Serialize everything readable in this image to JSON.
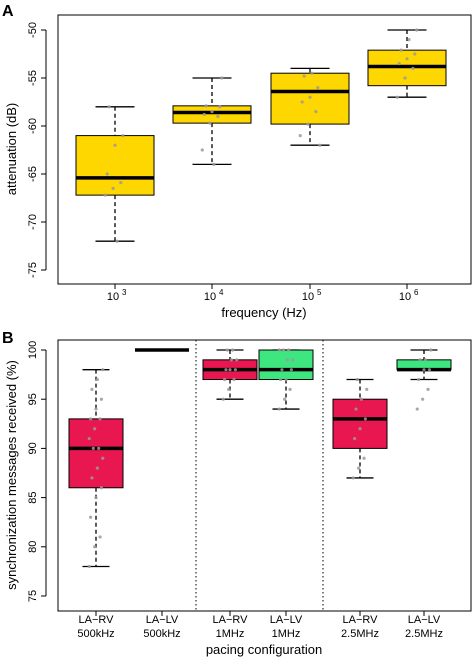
{
  "chart_data": [
    {
      "panel_label": "A",
      "type": "boxplot",
      "xlabel": "frequency (Hz)",
      "ylabel": "attenuation (dB)",
      "ylim": [
        -75,
        -50
      ],
      "y_ticks": [
        -75,
        -70,
        -65,
        -60,
        -55,
        -50
      ],
      "grid": false,
      "categories": [
        {
          "base": "10",
          "exp": "3"
        },
        {
          "base": "10",
          "exp": "4"
        },
        {
          "base": "10",
          "exp": "5"
        },
        {
          "base": "10",
          "exp": "6"
        }
      ],
      "boxes": [
        {
          "color": "#FFD700",
          "min": -72,
          "q1": -67.2,
          "median": -65.4,
          "q3": -61,
          "max": -58,
          "points": [
            -67.2,
            -66.5,
            -65.9,
            -65,
            -62,
            -61,
            -58,
            -72
          ]
        },
        {
          "color": "#FFD700",
          "min": -64,
          "q1": -59.7,
          "median": -58.6,
          "q3": -57.9,
          "max": -55,
          "points": [
            -62.5,
            -59.7,
            -59,
            -58.8,
            -58.5,
            -58,
            -57.9,
            -64,
            -55
          ]
        },
        {
          "color": "#FFD700",
          "min": -62,
          "q1": -59.8,
          "median": -56.4,
          "q3": -54.5,
          "max": -54,
          "points": [
            -61,
            -59.8,
            -58.5,
            -57.5,
            -57,
            -56,
            -54.8,
            -54.5,
            -62
          ]
        },
        {
          "color": "#FFD700",
          "min": -57,
          "q1": -55.8,
          "median": -53.8,
          "q3": -52.1,
          "max": -50,
          "points": [
            -57,
            -55,
            -54,
            -53.5,
            -53,
            -52.5,
            -52.1,
            -51,
            -50
          ]
        }
      ]
    },
    {
      "panel_label": "B",
      "type": "boxplot",
      "xlabel": "pacing configuration",
      "ylabel": "synchronization messages received (%)",
      "ylim": [
        75,
        100
      ],
      "y_ticks": [
        75,
        80,
        85,
        90,
        95,
        100
      ],
      "grid": false,
      "categories": [
        {
          "line1": "LA−RV",
          "line2": "500kHz"
        },
        {
          "line1": "LA−LV",
          "line2": "500kHz"
        },
        {
          "line1": "LA−RV",
          "line2": "1MHz"
        },
        {
          "line1": "LA−LV",
          "line2": "1MHz"
        },
        {
          "line1": "LA−RV",
          "line2": "2.5MHz"
        },
        {
          "line1": "LA−LV",
          "line2": "2.5MHz"
        }
      ],
      "separators_after": [
        2,
        4
      ],
      "boxes": [
        {
          "color": "#E8174F",
          "min": 78,
          "q1": 86,
          "median": 90,
          "q3": 93,
          "max": 98,
          "points": [
            78,
            80,
            81,
            83,
            85,
            86,
            87,
            88,
            89,
            90,
            90,
            91,
            92,
            93,
            93,
            94,
            95,
            96,
            97,
            98
          ]
        },
        {
          "color": "#E8174F",
          "min": 100,
          "q1": 100,
          "median": 100,
          "q3": 100,
          "max": 100,
          "points": []
        },
        {
          "color": "#E8174F",
          "min": 95,
          "q1": 97,
          "median": 98,
          "q3": 99,
          "max": 100,
          "points": [
            95,
            96,
            97,
            97,
            98,
            98,
            98,
            99,
            99,
            100,
            100
          ]
        },
        {
          "color": "#3EE680",
          "min": 94,
          "q1": 97,
          "median": 98,
          "q3": 100,
          "max": 100,
          "points": [
            94,
            95,
            96,
            97,
            97,
            98,
            98,
            99,
            99,
            100,
            100,
            100
          ]
        },
        {
          "color": "#E8174F",
          "min": 87,
          "q1": 90,
          "median": 93,
          "q3": 95,
          "max": 97,
          "points": [
            87,
            88,
            89,
            91,
            92,
            93,
            94,
            95,
            96,
            97
          ]
        },
        {
          "color": "#3EE680",
          "min": 97,
          "q1": 98,
          "median": 98,
          "q3": 99,
          "max": 100,
          "points": [
            94,
            95,
            96,
            97,
            98,
            98,
            99,
            99,
            100
          ]
        }
      ]
    }
  ]
}
